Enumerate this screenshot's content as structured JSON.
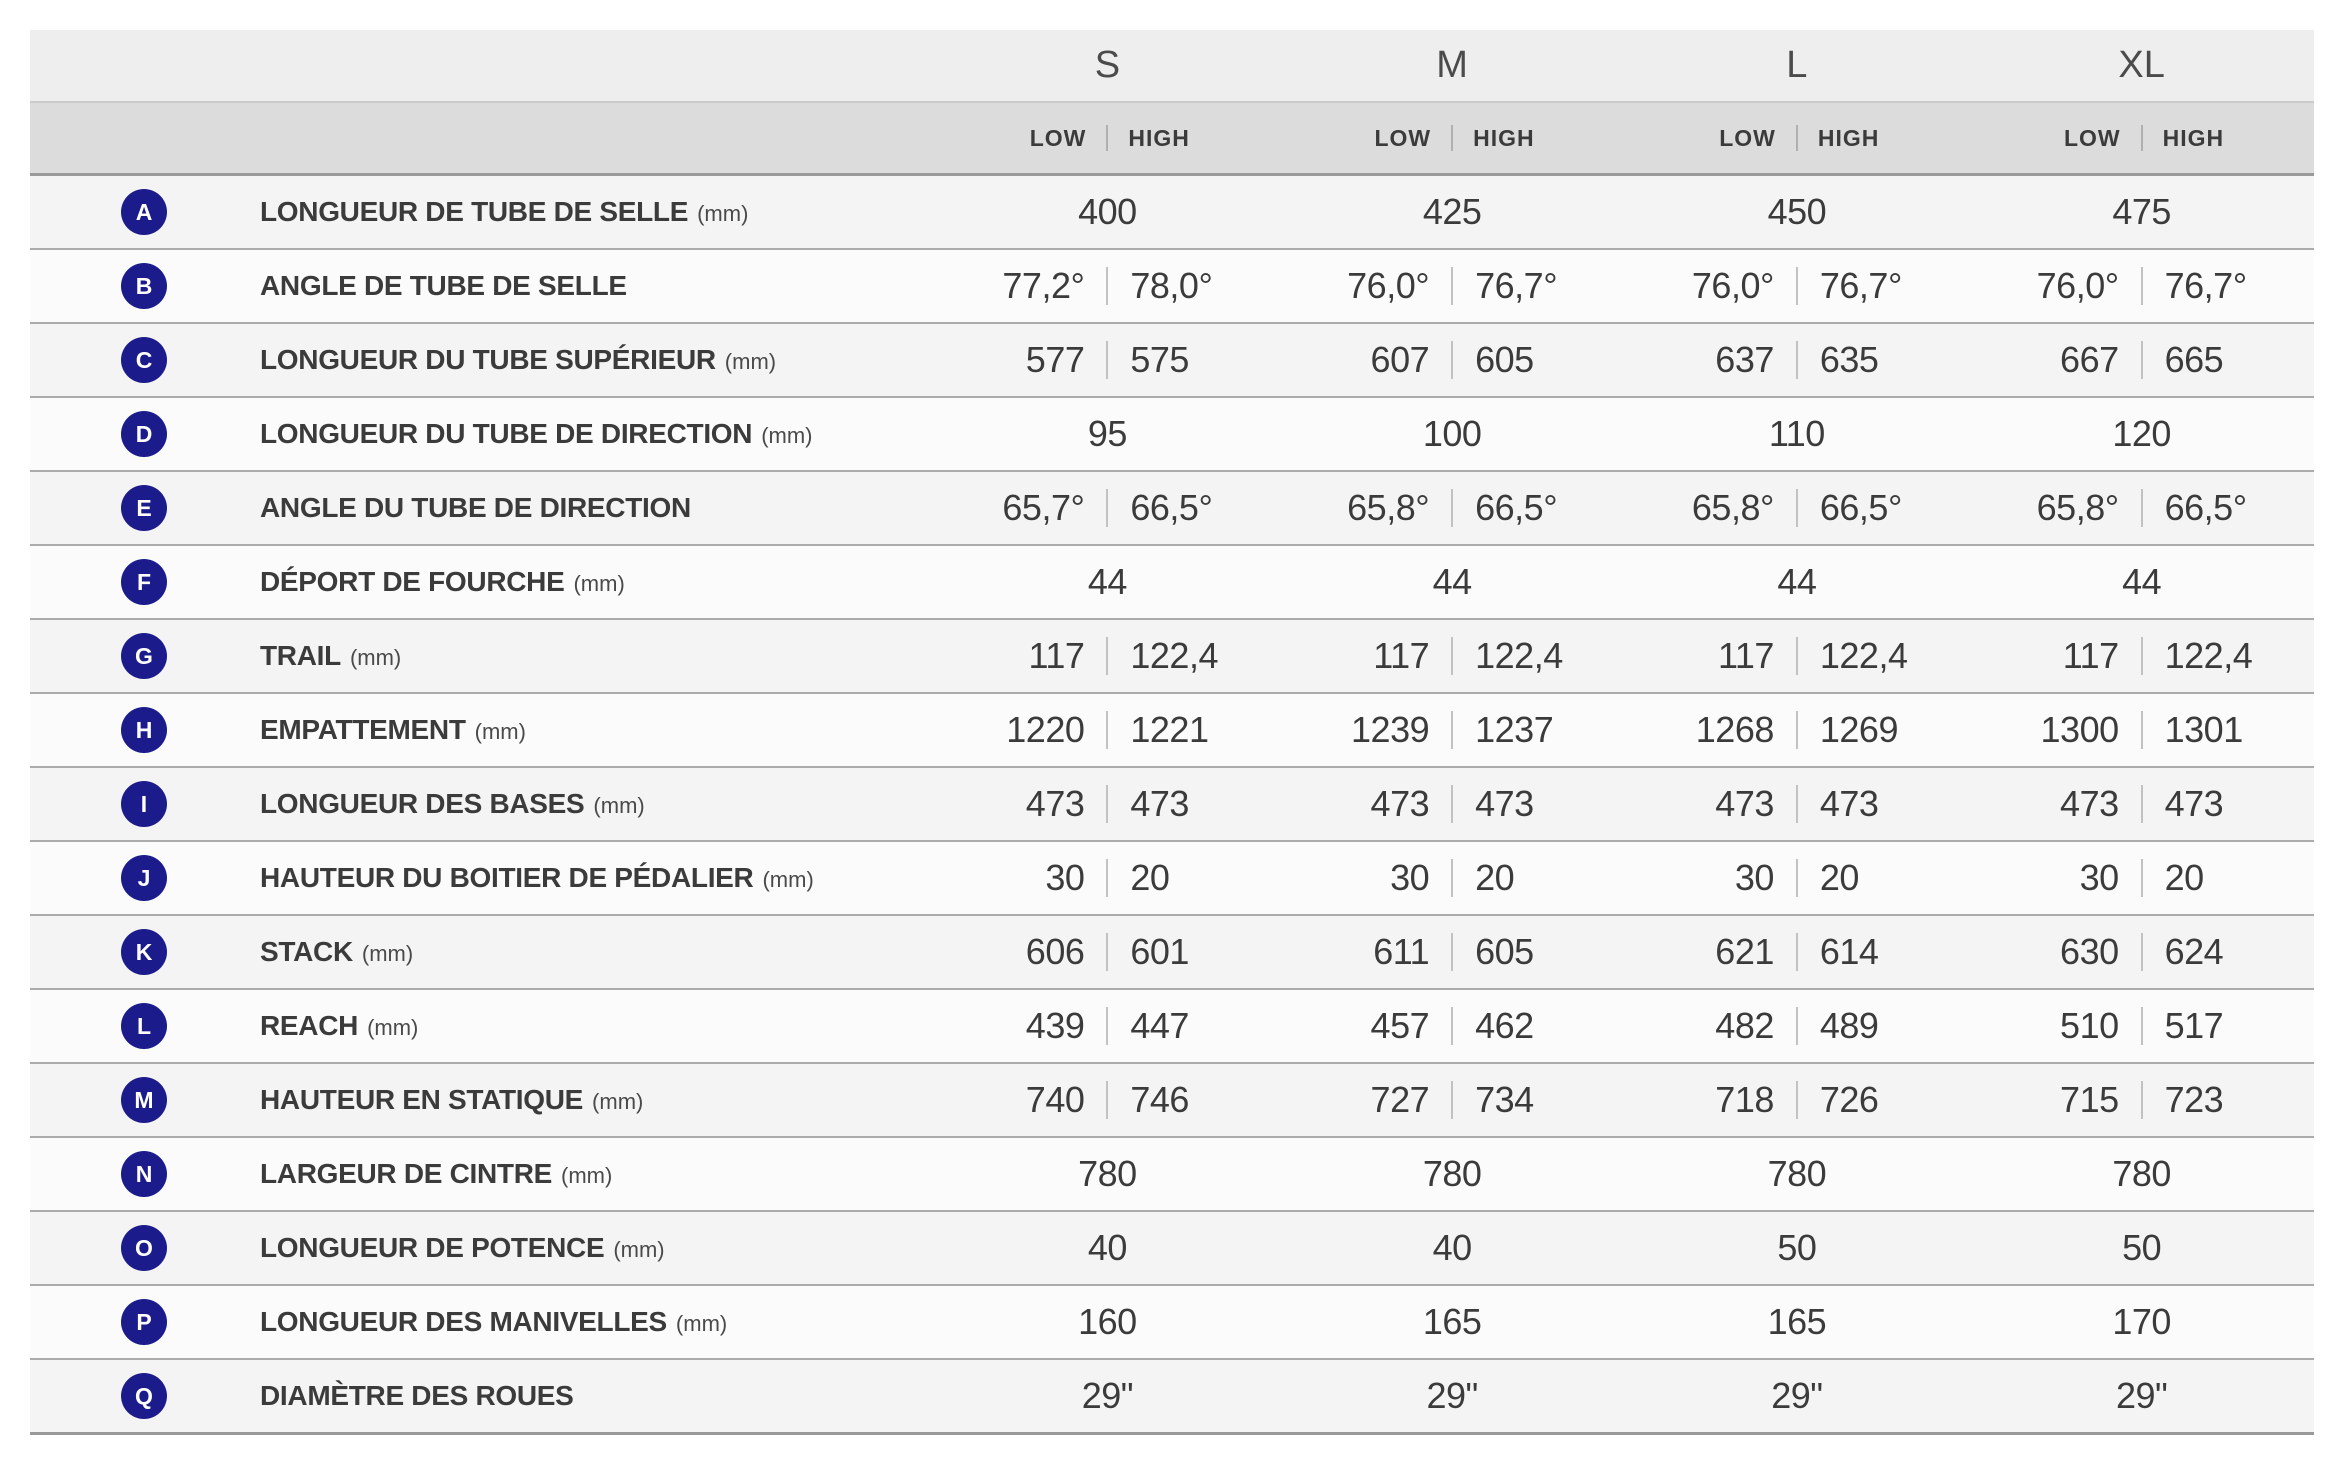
{
  "colors": {
    "badge_bg": "#1b1b8c",
    "badge_text": "#ffffff"
  },
  "table": {
    "sizes": [
      "S",
      "M",
      "L",
      "XL"
    ],
    "low_label": "LOW",
    "high_label": "HIGH",
    "rows": [
      {
        "letter": "A",
        "label": "LONGUEUR DE TUBE DE SELLE",
        "unit": "(mm)",
        "values": [
          {
            "value": "400"
          },
          {
            "value": "425"
          },
          {
            "value": "450"
          },
          {
            "value": "475"
          }
        ]
      },
      {
        "letter": "B",
        "label": "ANGLE DE TUBE DE SELLE",
        "unit": "",
        "values": [
          {
            "low": "77,2°",
            "high": "78,0°"
          },
          {
            "low": "76,0°",
            "high": "76,7°"
          },
          {
            "low": "76,0°",
            "high": "76,7°"
          },
          {
            "low": "76,0°",
            "high": "76,7°"
          }
        ]
      },
      {
        "letter": "C",
        "label": "LONGUEUR DU TUBE SUPÉRIEUR",
        "unit": "(mm)",
        "values": [
          {
            "low": "577",
            "high": "575"
          },
          {
            "low": "607",
            "high": "605"
          },
          {
            "low": "637",
            "high": "635"
          },
          {
            "low": "667",
            "high": "665"
          }
        ]
      },
      {
        "letter": "D",
        "label": "LONGUEUR DU TUBE DE DIRECTION",
        "unit": "(mm)",
        "values": [
          {
            "value": "95"
          },
          {
            "value": "100"
          },
          {
            "value": "110"
          },
          {
            "value": "120"
          }
        ]
      },
      {
        "letter": "E",
        "label": "ANGLE DU TUBE DE DIRECTION",
        "unit": "",
        "values": [
          {
            "low": "65,7°",
            "high": "66,5°"
          },
          {
            "low": "65,8°",
            "high": "66,5°"
          },
          {
            "low": "65,8°",
            "high": "66,5°"
          },
          {
            "low": "65,8°",
            "high": "66,5°"
          }
        ]
      },
      {
        "letter": "F",
        "label": "DÉPORT DE FOURCHE",
        "unit": "(mm)",
        "values": [
          {
            "value": "44"
          },
          {
            "value": "44"
          },
          {
            "value": "44"
          },
          {
            "value": "44"
          }
        ]
      },
      {
        "letter": "G",
        "label": "TRAIL",
        "unit": "(mm)",
        "values": [
          {
            "low": "117",
            "high": "122,4"
          },
          {
            "low": "117",
            "high": "122,4"
          },
          {
            "low": "117",
            "high": "122,4"
          },
          {
            "low": "117",
            "high": "122,4"
          }
        ]
      },
      {
        "letter": "H",
        "label": "EMPATTEMENT",
        "unit": "(mm)",
        "values": [
          {
            "low": "1220",
            "high": "1221"
          },
          {
            "low": "1239",
            "high": "1237"
          },
          {
            "low": "1268",
            "high": "1269"
          },
          {
            "low": "1300",
            "high": "1301"
          }
        ]
      },
      {
        "letter": "I",
        "label": "LONGUEUR DES BASES",
        "unit": "(mm)",
        "values": [
          {
            "low": "473",
            "high": "473"
          },
          {
            "low": "473",
            "high": "473"
          },
          {
            "low": "473",
            "high": "473"
          },
          {
            "low": "473",
            "high": "473"
          }
        ]
      },
      {
        "letter": "J",
        "label": "HAUTEUR DU BOITIER DE PÉDALIER",
        "unit": "(mm)",
        "values": [
          {
            "low": "30",
            "high": "20"
          },
          {
            "low": "30",
            "high": "20"
          },
          {
            "low": "30",
            "high": "20"
          },
          {
            "low": "30",
            "high": "20"
          }
        ]
      },
      {
        "letter": "K",
        "label": "STACK",
        "unit": "(mm)",
        "values": [
          {
            "low": "606",
            "high": "601"
          },
          {
            "low": "611",
            "high": "605"
          },
          {
            "low": "621",
            "high": "614"
          },
          {
            "low": "630",
            "high": "624"
          }
        ]
      },
      {
        "letter": "L",
        "label": "REACH",
        "unit": "(mm)",
        "values": [
          {
            "low": "439",
            "high": "447"
          },
          {
            "low": "457",
            "high": "462"
          },
          {
            "low": "482",
            "high": "489"
          },
          {
            "low": "510",
            "high": "517"
          }
        ]
      },
      {
        "letter": "M",
        "label": "HAUTEUR EN STATIQUE",
        "unit": "(mm)",
        "values": [
          {
            "low": "740",
            "high": "746"
          },
          {
            "low": "727",
            "high": "734"
          },
          {
            "low": "718",
            "high": "726"
          },
          {
            "low": "715",
            "high": "723"
          }
        ]
      },
      {
        "letter": "N",
        "label": "LARGEUR DE CINTRE",
        "unit": "(mm)",
        "values": [
          {
            "value": "780"
          },
          {
            "value": "780"
          },
          {
            "value": "780"
          },
          {
            "value": "780"
          }
        ]
      },
      {
        "letter": "O",
        "label": "LONGUEUR DE POTENCE",
        "unit": "(mm)",
        "values": [
          {
            "value": "40"
          },
          {
            "value": "40"
          },
          {
            "value": "50"
          },
          {
            "value": "50"
          }
        ]
      },
      {
        "letter": "P",
        "label": "LONGUEUR DES MANIVELLES",
        "unit": "(mm)",
        "values": [
          {
            "value": "160"
          },
          {
            "value": "165"
          },
          {
            "value": "165"
          },
          {
            "value": "170"
          }
        ]
      },
      {
        "letter": "Q",
        "label": "DIAMÈTRE DES ROUES",
        "unit": "",
        "values": [
          {
            "value": "29\""
          },
          {
            "value": "29\""
          },
          {
            "value": "29\""
          },
          {
            "value": "29\""
          }
        ]
      }
    ]
  }
}
